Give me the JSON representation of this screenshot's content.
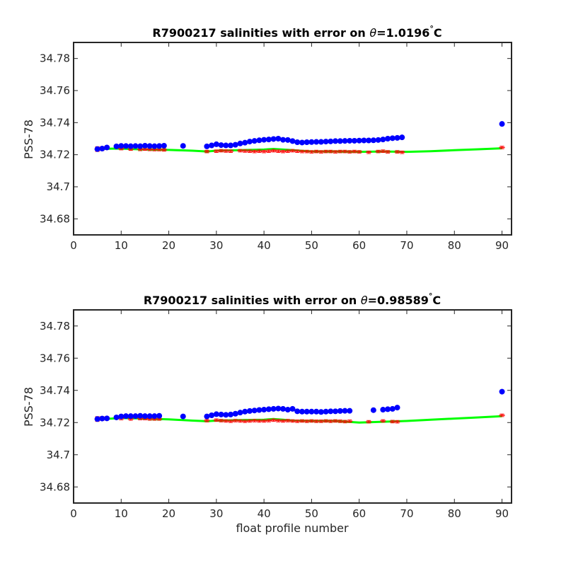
{
  "colors": {
    "float_points": "#0000ff",
    "climatology_fit": "#00ff00",
    "error_bars": "#ff0000",
    "mapped_markers": "#ff0000",
    "axes": "#262626"
  },
  "chart_data": [
    {
      "type": "scatter",
      "title_prefix": "R7900217 salinities with error on ",
      "theta_symbol": "θ",
      "title_value": "=1.0196",
      "title_unit_degree": "°",
      "title_unit": "C",
      "xlabel": "",
      "ylabel": "PSS-78",
      "xlim": [
        0,
        92
      ],
      "ylim": [
        34.67,
        34.79
      ],
      "xticks": [
        0,
        10,
        20,
        30,
        40,
        50,
        60,
        70,
        80,
        90
      ],
      "yticks": [
        34.68,
        34.7,
        34.72,
        34.74,
        34.76,
        34.78
      ],
      "ytick_labels": [
        "34.68",
        "34.7",
        "34.72",
        "34.74",
        "34.76",
        "34.78"
      ],
      "grid": false,
      "series": [
        {
          "style": "blue-dots",
          "x": [
            5,
            6,
            7,
            9,
            10,
            11,
            12,
            13,
            14,
            15,
            16,
            17,
            18,
            19,
            23,
            28,
            29,
            30,
            31,
            32,
            33,
            34,
            35,
            36,
            37,
            38,
            39,
            40,
            41,
            42,
            43,
            44,
            45,
            46,
            47,
            48,
            49,
            50,
            51,
            52,
            53,
            54,
            55,
            56,
            57,
            58,
            59,
            60,
            61,
            62,
            63,
            64,
            65,
            66,
            67,
            68,
            69,
            90
          ],
          "y": [
            34.7235,
            34.7238,
            34.7245,
            34.7252,
            34.7255,
            34.7254,
            34.7253,
            34.7254,
            34.7253,
            34.7256,
            34.7254,
            34.7253,
            34.7254,
            34.7256,
            34.7255,
            34.7252,
            34.7258,
            34.7265,
            34.726,
            34.7258,
            34.7258,
            34.7262,
            34.727,
            34.7275,
            34.7282,
            34.7286,
            34.729,
            34.7293,
            34.7295,
            34.7298,
            34.73,
            34.7293,
            34.7292,
            34.7285,
            34.7278,
            34.7276,
            34.7278,
            34.7279,
            34.728,
            34.728,
            34.7282,
            34.7283,
            34.7285,
            34.7285,
            34.7286,
            34.7287,
            34.7287,
            34.7288,
            34.7289,
            34.7289,
            34.729,
            34.7292,
            34.7295,
            34.73,
            34.7303,
            34.7305,
            34.7308,
            34.7392
          ]
        },
        {
          "style": "green-line",
          "x": [
            5,
            8,
            10,
            15,
            20,
            25,
            28,
            30,
            35,
            40,
            42,
            44,
            46,
            50,
            55,
            60,
            65,
            70,
            75,
            80,
            85,
            90
          ],
          "y": [
            34.7235,
            34.7238,
            34.7238,
            34.7233,
            34.723,
            34.7225,
            34.722,
            34.7225,
            34.7228,
            34.7232,
            34.7236,
            34.7232,
            34.7228,
            34.722,
            34.722,
            34.7218,
            34.722,
            34.7218,
            34.7222,
            34.7228,
            34.7234,
            34.724
          ]
        },
        {
          "style": "red-errorbars",
          "x": [
            5,
            6,
            7,
            10,
            12,
            14,
            15,
            16,
            17,
            18,
            19,
            28,
            30,
            31,
            32,
            33,
            35,
            36,
            37,
            38,
            39,
            40,
            41,
            42,
            43,
            44,
            45,
            46,
            47,
            48,
            49,
            50,
            51,
            52,
            53,
            54,
            55,
            56,
            57,
            58,
            59,
            60,
            62,
            64,
            65,
            66,
            68,
            69,
            90
          ],
          "y": [
            34.7235,
            34.7238,
            34.7245,
            34.7238,
            34.7235,
            34.7233,
            34.7235,
            34.7233,
            34.7232,
            34.7232,
            34.723,
            34.722,
            34.7222,
            34.7225,
            34.7223,
            34.7222,
            34.7225,
            34.7223,
            34.7222,
            34.722,
            34.7222,
            34.722,
            34.7222,
            34.7225,
            34.7222,
            34.722,
            34.7222,
            34.7225,
            34.7222,
            34.722,
            34.722,
            34.7218,
            34.722,
            34.7218,
            34.722,
            34.722,
            34.7218,
            34.722,
            34.722,
            34.7218,
            34.722,
            34.7218,
            34.7215,
            34.722,
            34.7222,
            34.7218,
            34.7218,
            34.7215,
            34.7245
          ],
          "err": [
            0.0015,
            0.0012,
            0.001,
            0.0008,
            0.0008,
            0.0008,
            0.0008,
            0.0008,
            0.0008,
            0.0008,
            0.0008,
            0.0008,
            0.0008,
            0.0008,
            0.0008,
            0.0008,
            0.0008,
            0.0008,
            0.0008,
            0.0008,
            0.0008,
            0.0008,
            0.0008,
            0.0008,
            0.0008,
            0.0008,
            0.0008,
            0.0008,
            0.0008,
            0.0008,
            0.0008,
            0.0008,
            0.0008,
            0.0008,
            0.0008,
            0.0008,
            0.0008,
            0.0008,
            0.0008,
            0.0008,
            0.0008,
            0.0008,
            0.0008,
            0.0008,
            0.0008,
            0.0008,
            0.0008,
            0.0008,
            0.0008
          ]
        }
      ]
    },
    {
      "type": "scatter",
      "title_prefix": "R7900217 salinities with error on ",
      "theta_symbol": "θ",
      "title_value": "=0.98589",
      "title_unit_degree": "°",
      "title_unit": "C",
      "xlabel": "float profile number",
      "ylabel": "PSS-78",
      "xlim": [
        0,
        92
      ],
      "ylim": [
        34.67,
        34.79
      ],
      "xticks": [
        0,
        10,
        20,
        30,
        40,
        50,
        60,
        70,
        80,
        90
      ],
      "yticks": [
        34.68,
        34.7,
        34.72,
        34.74,
        34.76,
        34.78
      ],
      "ytick_labels": [
        "34.68",
        "34.7",
        "34.72",
        "34.74",
        "34.76",
        "34.78"
      ],
      "grid": false,
      "series": [
        {
          "style": "blue-dots",
          "x": [
            5,
            6,
            7,
            9,
            10,
            11,
            12,
            13,
            14,
            15,
            16,
            17,
            18,
            23,
            28,
            29,
            30,
            31,
            32,
            33,
            34,
            35,
            36,
            37,
            38,
            39,
            40,
            41,
            42,
            43,
            44,
            45,
            46,
            47,
            48,
            49,
            50,
            51,
            52,
            53,
            54,
            55,
            56,
            57,
            58,
            63,
            65,
            66,
            67,
            68,
            90
          ],
          "y": [
            34.7222,
            34.7225,
            34.7226,
            34.7232,
            34.7238,
            34.724,
            34.724,
            34.724,
            34.7242,
            34.724,
            34.724,
            34.724,
            34.7242,
            34.7238,
            34.7238,
            34.7245,
            34.7252,
            34.725,
            34.7248,
            34.725,
            34.7255,
            34.7262,
            34.7268,
            34.7272,
            34.7275,
            34.7278,
            34.728,
            34.7283,
            34.7285,
            34.7287,
            34.7285,
            34.728,
            34.7285,
            34.727,
            34.7268,
            34.7268,
            34.7268,
            34.7268,
            34.7266,
            34.7268,
            34.727,
            34.727,
            34.7272,
            34.7273,
            34.7273,
            34.7277,
            34.728,
            34.7283,
            34.7285,
            34.7293,
            34.7392
          ]
        },
        {
          "style": "green-line",
          "x": [
            5,
            8,
            10,
            15,
            20,
            25,
            28,
            30,
            35,
            40,
            42,
            44,
            46,
            50,
            55,
            60,
            65,
            70,
            75,
            80,
            85,
            90
          ],
          "y": [
            34.7222,
            34.7225,
            34.7228,
            34.7225,
            34.722,
            34.7212,
            34.7208,
            34.7212,
            34.7215,
            34.7218,
            34.7222,
            34.7218,
            34.7212,
            34.721,
            34.721,
            34.72,
            34.7205,
            34.721,
            34.7218,
            34.7225,
            34.7232,
            34.724
          ]
        },
        {
          "style": "red-errorbars",
          "x": [
            5,
            6,
            7,
            10,
            12,
            14,
            15,
            16,
            17,
            18,
            28,
            30,
            31,
            32,
            33,
            34,
            35,
            36,
            37,
            38,
            39,
            40,
            41,
            42,
            43,
            44,
            45,
            46,
            47,
            48,
            49,
            50,
            51,
            52,
            53,
            54,
            55,
            56,
            57,
            58,
            62,
            65,
            67,
            68,
            90
          ],
          "y": [
            34.7222,
            34.7225,
            34.7226,
            34.7225,
            34.7222,
            34.7225,
            34.7225,
            34.7222,
            34.7222,
            34.7222,
            34.7212,
            34.7215,
            34.7212,
            34.721,
            34.7208,
            34.7212,
            34.721,
            34.7208,
            34.721,
            34.7212,
            34.721,
            34.721,
            34.7212,
            34.7215,
            34.7212,
            34.721,
            34.7212,
            34.721,
            34.7208,
            34.721,
            34.7208,
            34.721,
            34.7208,
            34.7208,
            34.721,
            34.7208,
            34.721,
            34.7208,
            34.7206,
            34.7208,
            34.7205,
            34.721,
            34.7206,
            34.7205,
            34.7245
          ],
          "err": [
            0.0015,
            0.0012,
            0.001,
            0.0008,
            0.0008,
            0.0008,
            0.0008,
            0.0008,
            0.0008,
            0.0008,
            0.0008,
            0.0008,
            0.0008,
            0.0008,
            0.0008,
            0.0008,
            0.0008,
            0.0008,
            0.0008,
            0.0008,
            0.0008,
            0.0008,
            0.0008,
            0.0008,
            0.0008,
            0.0008,
            0.0008,
            0.0008,
            0.0008,
            0.0008,
            0.0008,
            0.0008,
            0.0008,
            0.0008,
            0.0008,
            0.0008,
            0.0008,
            0.0008,
            0.0008,
            0.0008,
            0.0008,
            0.0008,
            0.0008,
            0.0008,
            0.0008
          ]
        }
      ]
    }
  ]
}
